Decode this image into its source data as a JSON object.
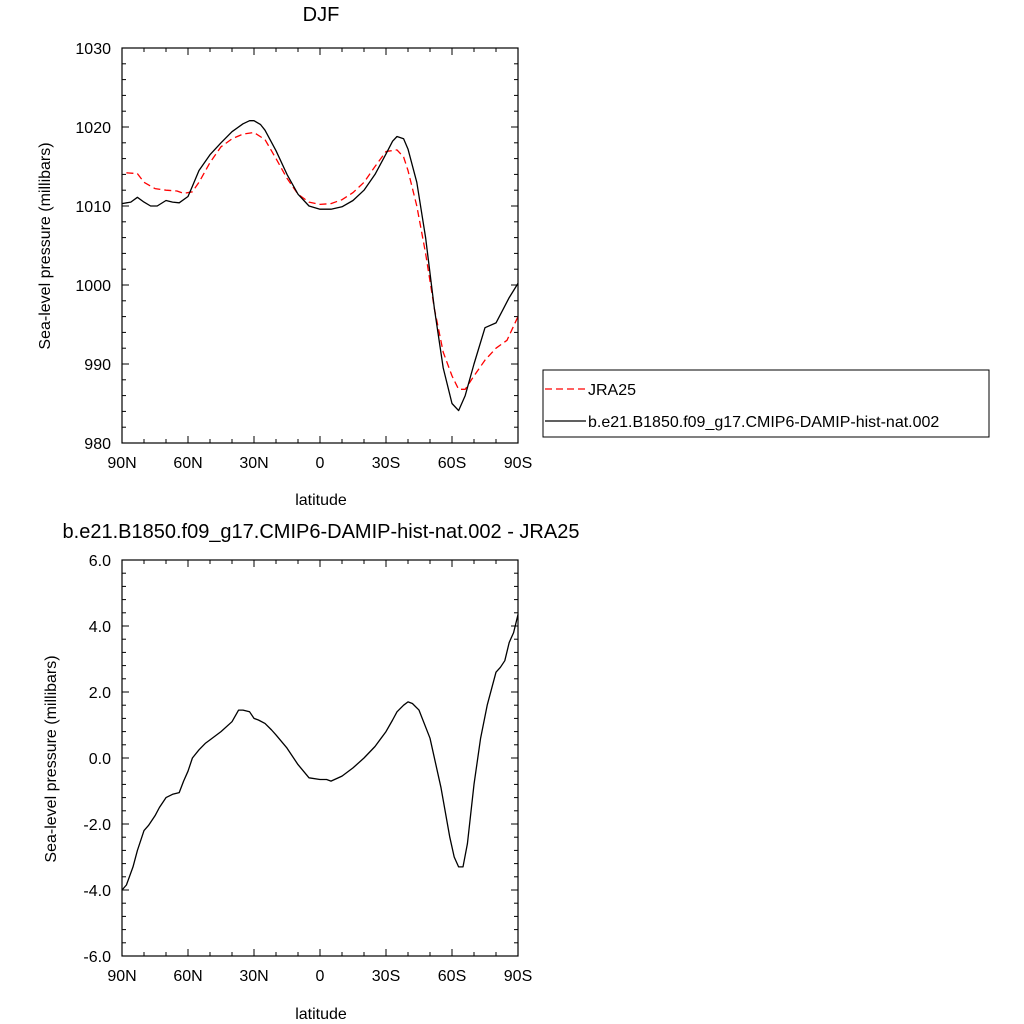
{
  "chart_data": [
    {
      "type": "line",
      "title": "DJF",
      "xlabel": "latitude",
      "ylabel": "Sea-level pressure (millibars)",
      "xlim": [
        90,
        -90
      ],
      "ylim": [
        980,
        1030
      ],
      "xticks": [
        90,
        60,
        30,
        0,
        -30,
        -60,
        -90
      ],
      "xtick_labels": [
        "90N",
        "60N",
        "30N",
        "0",
        "30S",
        "60S",
        "90S"
      ],
      "yticks": [
        980,
        990,
        1000,
        1010,
        1020,
        1030
      ],
      "ytick_labels": [
        "980",
        "990",
        "1000",
        "1010",
        "1020",
        "1030"
      ],
      "legend_position": "right",
      "series": [
        {
          "name": "JRA25",
          "color": "#ff0000",
          "dash": "dashed",
          "x": [
            88,
            83,
            80,
            75,
            70,
            65,
            62,
            58,
            55,
            50,
            45,
            40,
            35,
            30,
            25,
            20,
            15,
            10,
            5,
            0,
            -5,
            -10,
            -15,
            -20,
            -25,
            -30,
            -35,
            -38,
            -40,
            -44,
            -48,
            -52,
            -56,
            -60,
            -63,
            -66,
            -70,
            -75,
            -80,
            -85,
            -90
          ],
          "y": [
            1014.2,
            1014.1,
            1013.0,
            1012.2,
            1012.0,
            1011.9,
            1011.6,
            1011.8,
            1013.0,
            1015.5,
            1017.5,
            1018.5,
            1019.1,
            1019.3,
            1018.4,
            1016.0,
            1013.5,
            1011.5,
            1010.5,
            1010.2,
            1010.3,
            1010.8,
            1011.7,
            1013.0,
            1015.0,
            1016.9,
            1017.1,
            1016.2,
            1014.5,
            1010.0,
            1004.0,
            997.0,
            991.5,
            988.5,
            986.8,
            986.8,
            988.5,
            990.5,
            992.0,
            993.0,
            996.0
          ]
        },
        {
          "name": "b.e21.B1850.f09_g17.CMIP6-DAMIP-hist-nat.002",
          "color": "#000000",
          "dash": "solid",
          "x": [
            90,
            86,
            83,
            80,
            77,
            74,
            70,
            67,
            64,
            60,
            58,
            55,
            50,
            45,
            40,
            35,
            32,
            30,
            27,
            25,
            20,
            15,
            10,
            5,
            0,
            -5,
            -10,
            -15,
            -20,
            -25,
            -30,
            -33,
            -35,
            -38,
            -40,
            -44,
            -48,
            -52,
            -56,
            -60,
            -63,
            -66,
            -70,
            -75,
            -80,
            -83,
            -86,
            -90
          ],
          "y": [
            1010.3,
            1010.5,
            1011.1,
            1010.5,
            1010.0,
            1010.0,
            1010.7,
            1010.5,
            1010.4,
            1011.2,
            1012.5,
            1014.5,
            1016.5,
            1018.0,
            1019.4,
            1020.4,
            1020.8,
            1020.8,
            1020.3,
            1019.6,
            1017.0,
            1014.0,
            1011.5,
            1010.0,
            1009.6,
            1009.6,
            1009.9,
            1010.7,
            1012.0,
            1014.0,
            1016.6,
            1018.2,
            1018.8,
            1018.5,
            1017.2,
            1013.0,
            1006.0,
            997.0,
            989.5,
            985.0,
            984.1,
            986.0,
            990.0,
            994.6,
            995.2,
            996.8,
            998.4,
            1000.2
          ]
        }
      ]
    },
    {
      "type": "line",
      "title": "b.e21.B1850.f09_g17.CMIP6-DAMIP-hist-nat.002 - JRA25",
      "xlabel": "latitude",
      "ylabel": "Sea-level pressure (millibars)",
      "xlim": [
        90,
        -90
      ],
      "ylim": [
        -6.0,
        6.0
      ],
      "xticks": [
        90,
        60,
        30,
        0,
        -30,
        -60,
        -90
      ],
      "xtick_labels": [
        "90N",
        "60N",
        "30N",
        "0",
        "30S",
        "60S",
        "90S"
      ],
      "yticks": [
        -6,
        -4,
        -2,
        0,
        2,
        4,
        6
      ],
      "ytick_labels": [
        "-6.0",
        "-4.0",
        "-2.0",
        "0.0",
        "2.0",
        "4.0",
        "6.0"
      ],
      "series": [
        {
          "color": "#000000",
          "dash": "solid",
          "x": [
            90,
            88,
            85,
            83,
            80,
            78,
            75,
            73,
            70,
            67,
            64,
            62,
            60,
            58,
            55,
            52,
            50,
            45,
            40,
            37,
            35,
            32,
            30,
            28,
            25,
            22,
            20,
            15,
            10,
            5,
            0,
            -3,
            -5,
            -10,
            -15,
            -20,
            -25,
            -30,
            -33,
            -35,
            -38,
            -40,
            -42,
            -45,
            -50,
            -55,
            -59,
            -61,
            -63,
            -65,
            -67,
            -70,
            -73,
            -76,
            -78,
            -80,
            -82,
            -84,
            -86,
            -88,
            -90
          ],
          "y": [
            -4.0,
            -3.85,
            -3.3,
            -2.8,
            -2.2,
            -2.05,
            -1.75,
            -1.5,
            -1.2,
            -1.1,
            -1.05,
            -0.7,
            -0.4,
            0.0,
            0.25,
            0.45,
            0.55,
            0.8,
            1.1,
            1.45,
            1.45,
            1.4,
            1.2,
            1.15,
            1.05,
            0.85,
            0.7,
            0.3,
            -0.2,
            -0.6,
            -0.65,
            -0.65,
            -0.7,
            -0.55,
            -0.3,
            0.0,
            0.35,
            0.8,
            1.15,
            1.4,
            1.6,
            1.7,
            1.65,
            1.45,
            0.6,
            -0.9,
            -2.4,
            -3.0,
            -3.3,
            -3.3,
            -2.6,
            -0.8,
            0.6,
            1.6,
            2.1,
            2.6,
            2.75,
            2.95,
            3.5,
            3.8,
            4.35
          ]
        }
      ]
    }
  ]
}
